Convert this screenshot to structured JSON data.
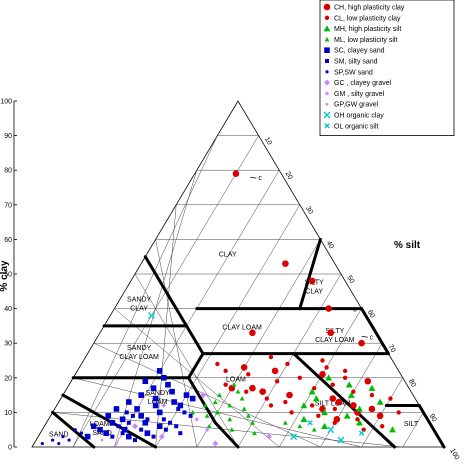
{
  "chart_data": {
    "type": "scatter",
    "subtype": "ternary",
    "axes": {
      "clay": {
        "label": "% clay",
        "range": [
          0,
          100
        ],
        "ticks": [
          0,
          10,
          20,
          30,
          40,
          50,
          60,
          70,
          80,
          90,
          100
        ]
      },
      "silt": {
        "label": "% silt",
        "range": [
          0,
          100
        ],
        "ticks": [
          10,
          20,
          30,
          40,
          50,
          60,
          70,
          80,
          90,
          100
        ]
      }
    },
    "silt_tick_labels": [
      "10",
      "20",
      "30",
      "40",
      "50",
      "60",
      "70",
      "80",
      "90",
      "100"
    ],
    "grid": true,
    "legend_position": "top-right",
    "regions": [
      {
        "name": "clay",
        "label": "CLAY",
        "at": {
          "clay": 55,
          "silt": 20
        }
      },
      {
        "name": "silty-clay",
        "label": "SILTY CLAY",
        "at": {
          "clay": 47,
          "silt": 45
        }
      },
      {
        "name": "sandy-clay",
        "label": "SANDY CLAY",
        "at": {
          "clay": 42,
          "silt": 5
        }
      },
      {
        "name": "clay-loam",
        "label": "CLAY LOAM",
        "at": {
          "clay": 34,
          "silt": 34
        }
      },
      {
        "name": "silty-clay-loam",
        "label": "SILTY CLAY LOAM",
        "at": {
          "clay": 33,
          "silt": 57
        }
      },
      {
        "name": "sandy-clay-loam",
        "label": "SANDY CLAY LOAM",
        "at": {
          "clay": 28,
          "silt": 12
        }
      },
      {
        "name": "loam",
        "label": "LOAM",
        "at": {
          "clay": 19,
          "silt": 40
        }
      },
      {
        "name": "sandy-loam",
        "label": "SANDY LOAM",
        "at": {
          "clay": 15,
          "silt": 23
        }
      },
      {
        "name": "silt-loam",
        "label": "SILT LOAM",
        "at": {
          "clay": 12,
          "silt": 67
        }
      },
      {
        "name": "loamy-sand",
        "label": "LOAMY SAND",
        "at": {
          "clay": 6,
          "silt": 14
        }
      },
      {
        "name": "sand",
        "label": "SAND",
        "at": {
          "clay": 3,
          "silt": 5
        }
      },
      {
        "name": "silt",
        "label": "SILT",
        "at": {
          "clay": 6,
          "silt": 89
        }
      }
    ],
    "boundaries": [
      [
        [
          55,
          0
        ],
        [
          35,
          20
        ]
      ],
      [
        [
          40,
          45
        ],
        [
          60,
          40
        ]
      ],
      [
        [
          40,
          45
        ],
        [
          40,
          60
        ]
      ],
      [
        [
          40,
          20
        ],
        [
          40,
          45
        ]
      ],
      [
        [
          35,
          0
        ],
        [
          35,
          20
        ]
      ],
      [
        [
          35,
          20
        ],
        [
          27,
          28
        ]
      ],
      [
        [
          27,
          28
        ],
        [
          27,
          73
        ]
      ],
      [
        [
          40,
          60
        ],
        [
          27,
          73
        ]
      ],
      [
        [
          27,
          28
        ],
        [
          20,
          28
        ]
      ],
      [
        [
          20,
          28
        ],
        [
          7,
          41
        ]
      ],
      [
        [
          7,
          41
        ],
        [
          0,
          50
        ]
      ],
      [
        [
          20,
          0
        ],
        [
          20,
          28
        ]
      ],
      [
        [
          27,
          50
        ],
        [
          0,
          88
        ]
      ],
      [
        [
          12,
          80
        ],
        [
          12,
          88
        ]
      ],
      [
        [
          12,
          88
        ],
        [
          0,
          100
        ]
      ],
      [
        [
          15,
          0
        ],
        [
          0,
          30
        ]
      ],
      [
        [
          10,
          0
        ],
        [
          0,
          15
        ]
      ]
    ],
    "arrows": [
      {
        "label": "c",
        "at": {
          "clay": 78,
          "silt": 14
        }
      },
      {
        "label": "c",
        "at": {
          "clay": 40,
          "silt": 56
        }
      },
      {
        "label": "c",
        "at": {
          "clay": 32,
          "silt": 64
        }
      }
    ],
    "series": [
      {
        "name": "CH, high plasticity clay",
        "marker": "circle-lg",
        "color": "#dd0000",
        "points": [
          [
            79,
            10
          ],
          [
            53,
            35
          ],
          [
            48,
            44
          ],
          [
            40,
            52
          ],
          [
            33,
            37
          ],
          [
            33,
            56
          ],
          [
            30,
            65
          ],
          [
            23,
            40
          ],
          [
            22,
            48
          ],
          [
            17,
            40
          ],
          [
            17,
            45
          ],
          [
            16,
            48
          ],
          [
            14,
            66
          ],
          [
            13,
            68
          ],
          [
            12,
            72
          ],
          [
            11,
            77
          ],
          [
            10,
            74
          ],
          [
            9,
            80
          ],
          [
            19,
            72
          ],
          [
            21,
            60
          ],
          [
            15,
            55
          ],
          [
            8,
            70
          ],
          [
            11,
            65
          ]
        ]
      },
      {
        "name": "CL, low plasticity clay",
        "marker": "circle-sm",
        "color": "#dd0000",
        "points": [
          [
            26,
            45
          ],
          [
            24,
            50
          ],
          [
            23,
            60
          ],
          [
            21,
            42
          ],
          [
            20,
            55
          ],
          [
            19,
            50
          ],
          [
            18,
            38
          ],
          [
            17,
            60
          ],
          [
            16,
            70
          ],
          [
            15,
            75
          ],
          [
            14,
            50
          ],
          [
            13,
            55
          ],
          [
            12,
            62
          ],
          [
            11,
            68
          ],
          [
            10,
            58
          ],
          [
            9,
            65
          ],
          [
            8,
            75
          ],
          [
            7,
            70
          ],
          [
            6,
            82
          ],
          [
            5,
            78
          ],
          [
            20,
            66
          ],
          [
            22,
            65
          ],
          [
            25,
            58
          ],
          [
            18,
            64
          ],
          [
            14,
            80
          ],
          [
            10,
            84
          ],
          [
            12,
            52
          ],
          [
            16,
            44
          ],
          [
            22,
            36
          ],
          [
            24,
            33
          ]
        ]
      },
      {
        "name": "MH, high plasticity silt",
        "marker": "triangle",
        "color": "#00bb00",
        "points": [
          [
            16,
            60
          ],
          [
            14,
            62
          ],
          [
            12,
            60
          ],
          [
            11,
            74
          ],
          [
            10,
            66
          ],
          [
            9,
            72
          ],
          [
            8,
            62
          ],
          [
            7,
            76
          ],
          [
            6,
            68
          ],
          [
            5,
            85
          ],
          [
            18,
            68
          ],
          [
            15,
            70
          ],
          [
            13,
            78
          ],
          [
            20,
            62
          ],
          [
            17,
            74
          ]
        ]
      },
      {
        "name": "ML, low plasticity silt",
        "marker": "triangle-sm",
        "color": "#00bb00",
        "points": [
          [
            18,
            40
          ],
          [
            16,
            42
          ],
          [
            15,
            38
          ],
          [
            14,
            44
          ],
          [
            13,
            38
          ],
          [
            12,
            42
          ],
          [
            11,
            46
          ],
          [
            10,
            40
          ],
          [
            9,
            48
          ],
          [
            8,
            44
          ],
          [
            7,
            50
          ],
          [
            6,
            40
          ],
          [
            5,
            46
          ],
          [
            4,
            52
          ],
          [
            12,
            36
          ],
          [
            10,
            34
          ],
          [
            9,
            38
          ],
          [
            7,
            58
          ],
          [
            6,
            62
          ],
          [
            5,
            66
          ]
        ]
      },
      {
        "name": "SC, clayey sand",
        "marker": "square",
        "color": "#0000cc",
        "points": [
          [
            22,
            20
          ],
          [
            20,
            22
          ],
          [
            19,
            18
          ],
          [
            18,
            24
          ],
          [
            17,
            21
          ],
          [
            16,
            26
          ],
          [
            15,
            19
          ],
          [
            14,
            23
          ],
          [
            13,
            28
          ],
          [
            12,
            24
          ],
          [
            11,
            20
          ],
          [
            10,
            26
          ],
          [
            9,
            22
          ],
          [
            8,
            18
          ],
          [
            7,
            24
          ],
          [
            6,
            28
          ],
          [
            5,
            20
          ],
          [
            4,
            26
          ],
          [
            3,
            22
          ],
          [
            13,
            17
          ],
          [
            11,
            15
          ],
          [
            9,
            14
          ],
          [
            7,
            16
          ],
          [
            6,
            12
          ],
          [
            5,
            14
          ],
          [
            4,
            16
          ],
          [
            3,
            12
          ],
          [
            15,
            30
          ],
          [
            14,
            32
          ],
          [
            12,
            30
          ]
        ]
      },
      {
        "name": "SM, silty sand",
        "marker": "square-sm",
        "color": "#0000cc",
        "points": [
          [
            10,
            18
          ],
          [
            9,
            20
          ],
          [
            8,
            24
          ],
          [
            7,
            20
          ],
          [
            6,
            18
          ],
          [
            5,
            24
          ],
          [
            4,
            20
          ],
          [
            3,
            18
          ],
          [
            2,
            24
          ],
          [
            8,
            28
          ],
          [
            7,
            30
          ],
          [
            6,
            32
          ],
          [
            5,
            30
          ],
          [
            4,
            34
          ],
          [
            3,
            28
          ],
          [
            11,
            30
          ],
          [
            10,
            32
          ],
          [
            9,
            34
          ]
        ]
      },
      {
        "name": "SP,SW sand",
        "marker": "dot",
        "color": "#0000cc",
        "points": [
          [
            3,
            6
          ],
          [
            2,
            4
          ],
          [
            2,
            8
          ],
          [
            1,
            6
          ],
          [
            1,
            2
          ],
          [
            4,
            10
          ],
          [
            5,
            8
          ],
          [
            3,
            12
          ]
        ]
      },
      {
        "name": "GC , clayey gravel",
        "marker": "diamond",
        "color": "#cc88ff",
        "points": [
          [
            15,
            34
          ],
          [
            6,
            22
          ],
          [
            3,
            30
          ],
          [
            1,
            44
          ],
          [
            3,
            56
          ]
        ]
      },
      {
        "name": "GM , silty gravel",
        "marker": "diamond-sm",
        "color": "#cc88ff",
        "points": [
          [
            12,
            26
          ],
          [
            8,
            36
          ],
          [
            5,
            40
          ]
        ]
      },
      {
        "name": "GP,GW  gravel",
        "marker": "dot-sm",
        "color": "#cc88ff",
        "points": [
          [
            2,
            16
          ],
          [
            1,
            20
          ]
        ]
      },
      {
        "name": "OH  organic clay",
        "marker": "x",
        "color": "#00cccc",
        "points": [
          [
            38,
            10
          ],
          [
            5,
            70
          ],
          [
            3,
            62
          ],
          [
            2,
            74
          ]
        ]
      },
      {
        "name": "OL  organic silt",
        "marker": "x-sm",
        "color": "#00cccc",
        "points": [
          [
            7,
            64
          ],
          [
            4,
            78
          ]
        ]
      }
    ]
  }
}
